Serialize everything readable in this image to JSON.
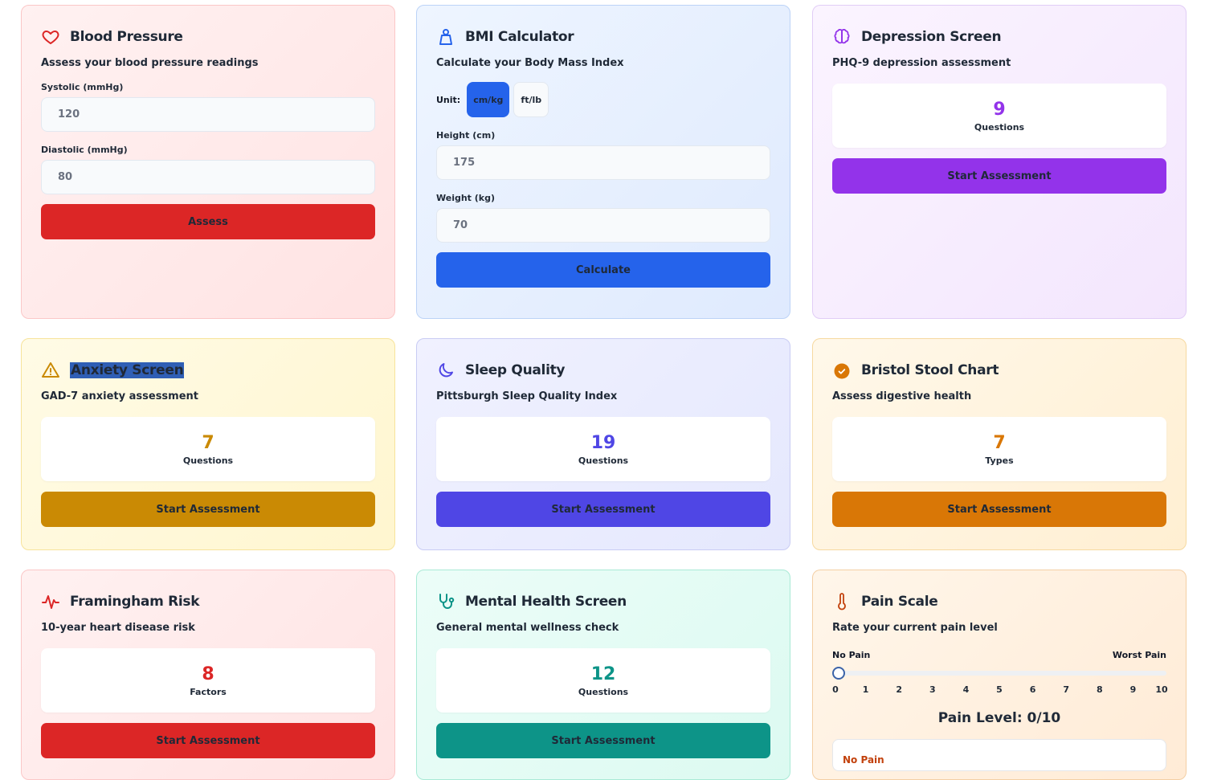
{
  "colors": {
    "red": "#dc2626",
    "blue": "#2563eb",
    "purple": "#9333ea",
    "yellow": "#ca8a04",
    "indigo": "#4f46e5",
    "orange": "#d97706",
    "teal": "#0d9488",
    "pain_accent": "#c2410c"
  },
  "blood_pressure": {
    "icon": "heart-icon",
    "title": "Blood Pressure",
    "subtitle": "Assess your blood pressure readings",
    "systolic_label": "Systolic (mmHg)",
    "systolic_value": "120",
    "diastolic_label": "Diastolic (mmHg)",
    "diastolic_value": "80",
    "button": "Assess"
  },
  "bmi": {
    "icon": "weight-icon",
    "title": "BMI Calculator",
    "subtitle": "Calculate your Body Mass Index",
    "unit_label": "Unit:",
    "unit_options": [
      "cm/kg",
      "ft/lb"
    ],
    "unit_selected": "cm/kg",
    "height_label": "Height (cm)",
    "height_value": "175",
    "weight_label": "Weight (kg)",
    "weight_value": "70",
    "button": "Calculate"
  },
  "depression": {
    "icon": "brain-icon",
    "title": "Depression Screen",
    "subtitle": "PHQ-9 depression assessment",
    "count": "9",
    "count_label": "Questions",
    "button": "Start Assessment"
  },
  "anxiety": {
    "icon": "warning-icon",
    "title": "Anxiety Screen",
    "title_selected": true,
    "subtitle": "GAD-7 anxiety assessment",
    "count": "7",
    "count_label": "Questions",
    "button": "Start Assessment"
  },
  "sleep": {
    "icon": "moon-icon",
    "title": "Sleep Quality",
    "subtitle": "Pittsburgh Sleep Quality Index",
    "count": "19",
    "count_label": "Questions",
    "button": "Start Assessment"
  },
  "bristol": {
    "icon": "check-circle-icon",
    "title": "Bristol Stool Chart",
    "subtitle": "Assess digestive health",
    "count": "7",
    "count_label": "Types",
    "button": "Start Assessment"
  },
  "framingham": {
    "icon": "pulse-icon",
    "title": "Framingham Risk",
    "subtitle": "10-year heart disease risk",
    "count": "8",
    "count_label": "Factors",
    "button": "Start Assessment"
  },
  "mental": {
    "icon": "stethoscope-icon",
    "title": "Mental Health Screen",
    "subtitle": "General mental wellness check",
    "count": "12",
    "count_label": "Questions",
    "button": "Start Assessment"
  },
  "pain": {
    "icon": "thermometer-icon",
    "title": "Pain Scale",
    "subtitle": "Rate your current pain level",
    "min_label": "No Pain",
    "max_label": "Worst Pain",
    "ticks": [
      "0",
      "1",
      "2",
      "3",
      "4",
      "5",
      "6",
      "7",
      "8",
      "9",
      "10"
    ],
    "value": 0,
    "max": 10,
    "level_text": "Pain Level: 0/10",
    "description": "No Pain"
  }
}
